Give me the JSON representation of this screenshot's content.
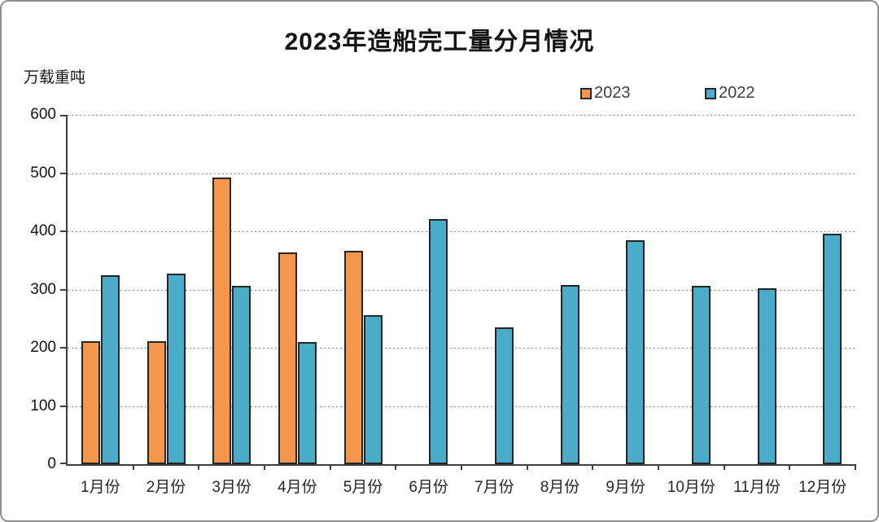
{
  "title": "2023年造船完工量分月情况",
  "y_axis_unit": "万载重吨",
  "legend": {
    "items": [
      {
        "label": "2023",
        "color": "#F4964B"
      },
      {
        "label": "2022",
        "color": "#4AACC8"
      }
    ]
  },
  "chart_data": {
    "type": "bar",
    "title": "2023年造船完工量分月情况",
    "ylabel": "万载重吨",
    "xlabel": "",
    "categories": [
      "1月份",
      "2月份",
      "3月份",
      "4月份",
      "5月份",
      "6月份",
      "7月份",
      "8月份",
      "9月份",
      "10月份",
      "11月份",
      "12月份"
    ],
    "series": [
      {
        "name": "2023",
        "color": "#F4964B",
        "border_color": "#262626",
        "values": [
          211,
          211,
          493,
          363,
          367,
          null,
          null,
          null,
          null,
          null,
          null,
          null
        ]
      },
      {
        "name": "2022",
        "color": "#4AACC8",
        "border_color": "#262626",
        "values": [
          325,
          327,
          307,
          210,
          256,
          421,
          235,
          308,
          385,
          307,
          302,
          396
        ]
      }
    ],
    "ylim": [
      0,
      600
    ],
    "ytick_interval": 100,
    "y_tick_labels": [
      "0",
      "100",
      "200",
      "300",
      "400",
      "500",
      "600"
    ],
    "grid": "dotted-horizontal",
    "legend_position": "top-right",
    "axis_color": "#3f3f3f",
    "gridline_color": "#8a8a8a"
  }
}
